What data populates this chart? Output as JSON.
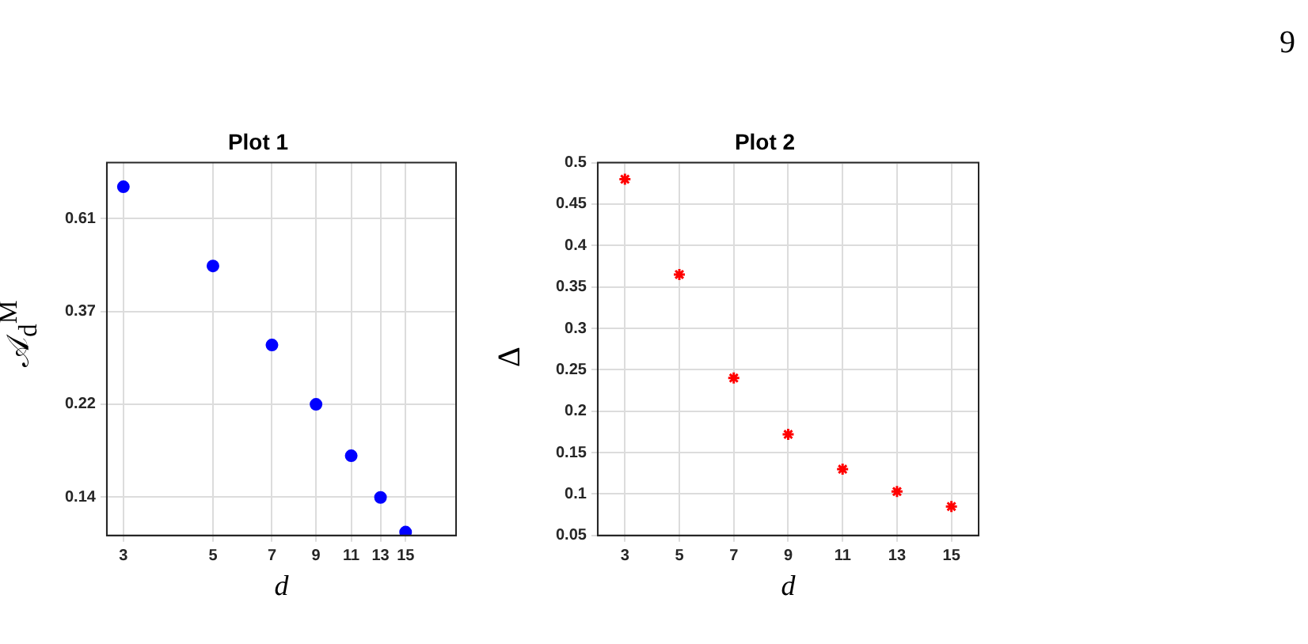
{
  "chart_data": [
    {
      "type": "scatter",
      "title": "Plot 1",
      "xlabel": "d",
      "ylabel": "𝒜$_{d}$$^{M}$",
      "log": "xy",
      "grid": true,
      "marker": "circle",
      "x": [
        3,
        5,
        7,
        9,
        11,
        13,
        15
      ],
      "series": [
        {
          "color": "#0000ff",
          "values": [
            0.72,
            0.47,
            0.307,
            0.223,
            0.169,
            0.135,
            0.112
          ]
        }
      ],
      "xlim": [
        2.73,
        20
      ],
      "xticks": [
        3,
        5,
        7,
        9,
        11,
        13,
        15
      ],
      "ylim": [
        0.11,
        0.82
      ],
      "yticks": [
        {
          "value": 0.1353,
          "label": "0.14"
        },
        {
          "value": 0.2231,
          "label": "0.22"
        },
        {
          "value": 0.3679,
          "label": "0.37"
        },
        {
          "value": 0.6065,
          "label": "0.61"
        }
      ]
    },
    {
      "type": "scatter",
      "title": "Plot 2",
      "xlabel": "d",
      "ylabel": "Δ",
      "grid": true,
      "marker": "cross",
      "x": [
        3,
        5,
        7,
        9,
        11,
        13,
        15
      ],
      "series": [
        {
          "color": "#ff0000",
          "values": [
            0.48,
            0.365,
            0.24,
            0.172,
            0.13,
            0.103,
            0.085
          ]
        }
      ],
      "xlim": [
        2,
        16
      ],
      "xticks": [
        3,
        5,
        7,
        9,
        11,
        13,
        15
      ],
      "ylim": [
        0.05,
        0.5
      ],
      "yticks": [
        0.05,
        0.1,
        0.15,
        0.2,
        0.25,
        0.3,
        0.35,
        0.4,
        0.45,
        0.5
      ],
      "annotations": [
        "9"
      ]
    }
  ]
}
